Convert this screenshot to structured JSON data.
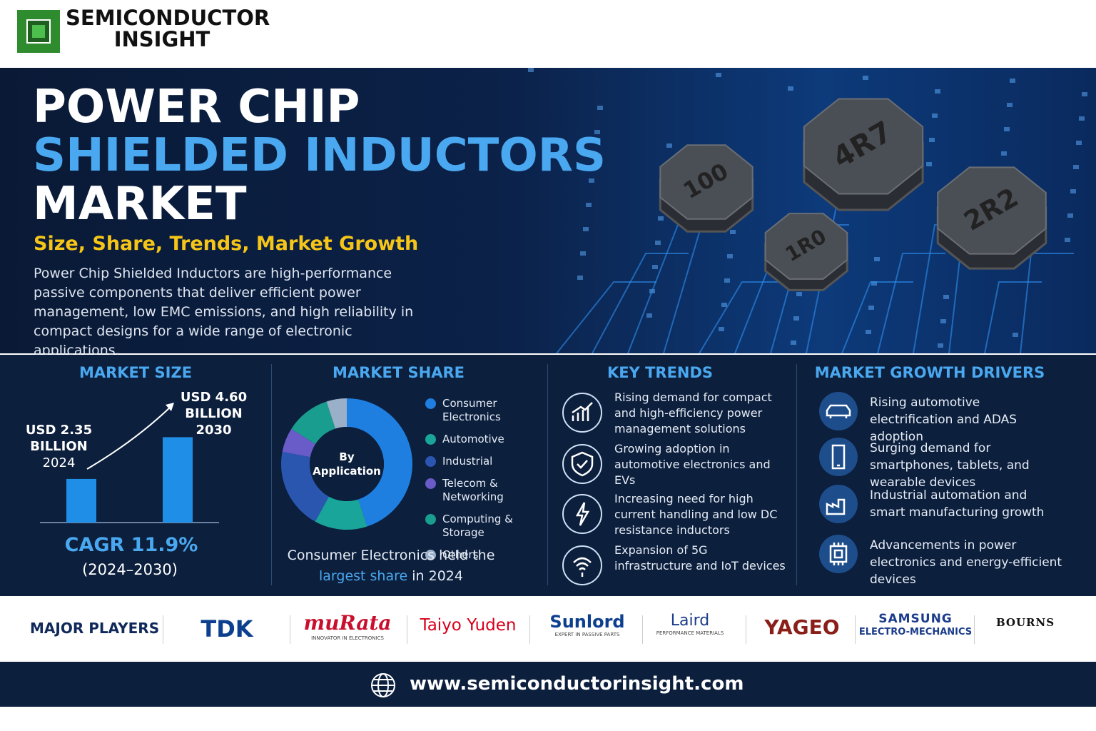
{
  "header": {
    "brand_line1": "SEMICONDUCTOR",
    "brand_line2": "INSIGHT"
  },
  "hero": {
    "title_line1": "POWER CHIP",
    "title_line2": "SHIELDED INDUCTORS",
    "title_line3": "MARKET",
    "subtitle": "Size, Share, Trends, Market Growth",
    "description": "Power Chip Shielded Inductors are high-performance passive components that deliver efficient power management, low EMC emissions, and high reliability in compact designs for a wide range of electronic applications.",
    "component_markings": [
      "100",
      "4R7",
      "1R0",
      "2R2"
    ]
  },
  "market_size": {
    "heading": "MARKET SIZE",
    "bars": [
      {
        "value": 2.35,
        "value_label": "USD 2.35",
        "unit": "BILLION",
        "year": "2024"
      },
      {
        "value": 4.6,
        "value_label": "USD 4.60",
        "unit": "BILLION",
        "year": "2030"
      }
    ],
    "cagr": "CAGR 11.9%",
    "cagr_period": "(2024–2030)"
  },
  "market_share": {
    "heading": "MARKET SHARE",
    "center_label_1": "By",
    "center_label_2": "Application",
    "series": [
      {
        "name": "Consumer Electronics",
        "color": "#1f7fe0",
        "value": 45
      },
      {
        "name": "Automotive",
        "color": "#1aa59a",
        "value": 13
      },
      {
        "name": "Industrial",
        "color": "#2a56b0",
        "value": 20
      },
      {
        "name": "Telecom & Networking",
        "color": "#6a5cc8",
        "value": 6
      },
      {
        "name": "Computing & Storage",
        "color": "#189d8e",
        "value": 11
      },
      {
        "name": "Others",
        "color": "#9ab0c8",
        "value": 5
      }
    ],
    "caption_before": "Consumer Electronics held the",
    "caption_highlight": "largest share",
    "caption_after": "in 2024"
  },
  "key_trends": {
    "heading": "KEY TRENDS",
    "items": [
      "Rising demand for compact and high-efficiency power management solutions",
      "Growing adoption in automotive electronics and EVs",
      "Increasing need for high current handling and low DC resistance inductors",
      "Expansion of 5G infrastructure and IoT devices"
    ]
  },
  "growth_drivers": {
    "heading": "MARKET GROWTH DRIVERS",
    "items": [
      "Rising automotive electrification and ADAS adoption",
      "Surging demand for smartphones, tablets, and wearable devices",
      "Industrial automation and smart manufacturing growth",
      "Advancements in power electronics and energy-efficient devices"
    ]
  },
  "major_players": {
    "heading": "MAJOR PLAYERS",
    "logos": [
      {
        "name": "TDK"
      },
      {
        "name": "muRata",
        "tagline": "INNOVATOR IN ELECTRONICS"
      },
      {
        "name": "Taiyo Yuden"
      },
      {
        "name": "Sunlord",
        "tagline": "EXPERT IN PASSIVE PARTS"
      },
      {
        "name": "Laird",
        "tagline": "PERFORMANCE MATERIALS"
      },
      {
        "name": "YAGEO"
      },
      {
        "name": "SAMSUNG",
        "tagline": "ELECTRO-MECHANICS"
      },
      {
        "name": "BOURNS"
      }
    ]
  },
  "footer": {
    "url": "www.semiconductorinsight.com"
  }
}
